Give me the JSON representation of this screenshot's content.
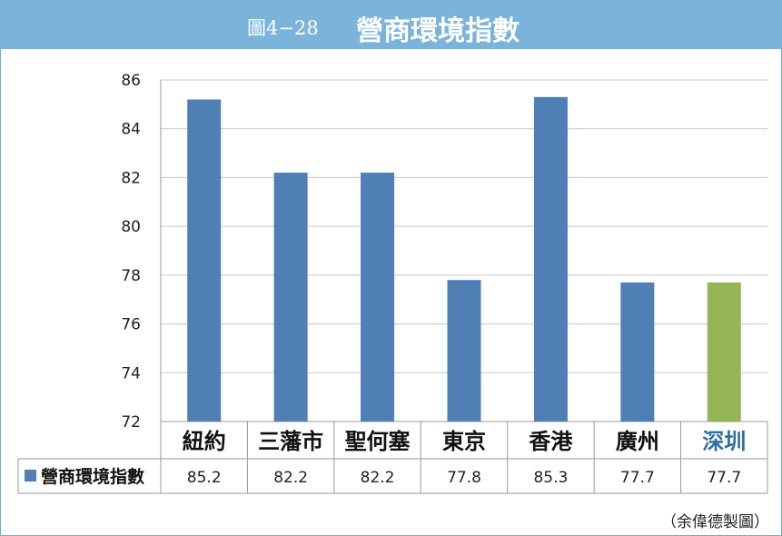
{
  "figure_number": "圖4−28",
  "figure_title": "營商環境指數",
  "credit": "（余偉德製圖）",
  "colors": {
    "header": "#7bb4db",
    "bar": "#4f7fb5",
    "highlight_bar": "#93b554",
    "highlight_label": "#2e6f9e"
  },
  "chart_data": {
    "type": "bar",
    "categories": [
      "紐約",
      "三藩市",
      "聖何塞",
      "東京",
      "香港",
      "廣州",
      "深圳"
    ],
    "series": [
      {
        "name": "營商環境指數",
        "values": [
          85.2,
          82.2,
          82.2,
          77.8,
          85.3,
          77.7,
          77.7
        ]
      }
    ],
    "value_labels": [
      "85.2",
      "82.2",
      "82.2",
      "77.8",
      "85.3",
      "77.7",
      "77.7"
    ],
    "highlight_category": "深圳",
    "ylim": [
      72,
      86
    ],
    "yticks": [
      72,
      74,
      76,
      78,
      80,
      82,
      84,
      86
    ],
    "grid": true,
    "data_table": true
  }
}
